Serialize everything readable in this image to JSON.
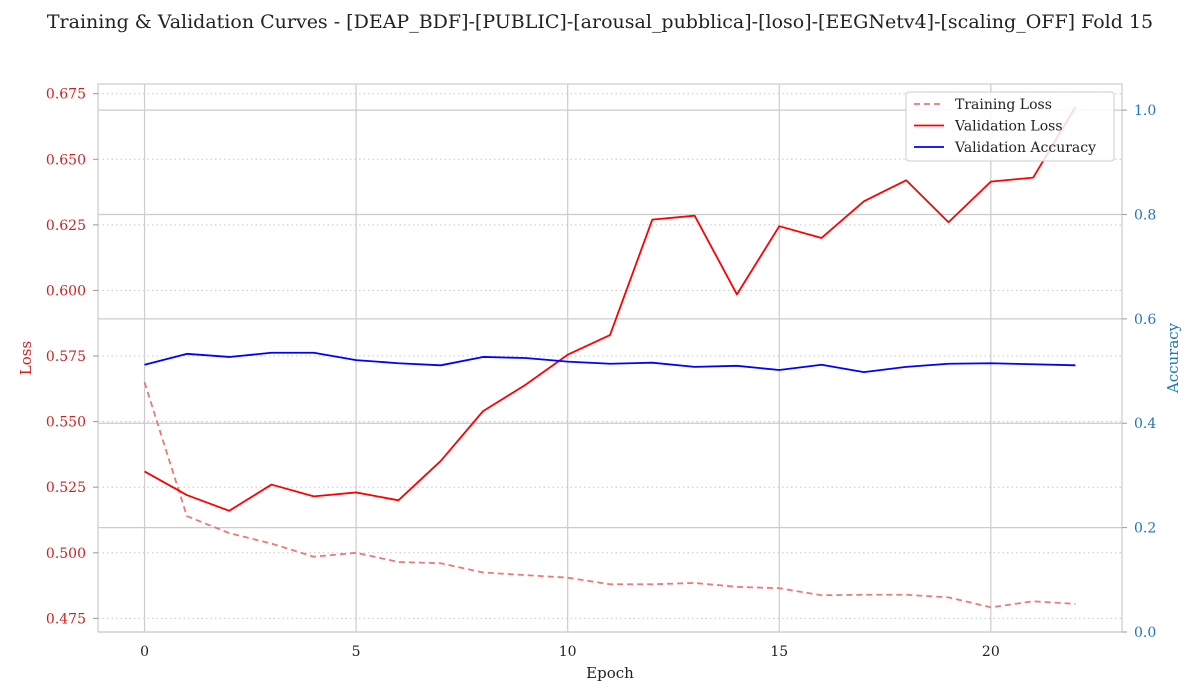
{
  "chart_data": {
    "type": "line",
    "title": "Training & Validation Curves - [DEAP_BDF]-[PUBLIC]-[arousal_pubblica]-[loso]-[EEGNetv4]-[scaling_OFF] Fold 15",
    "xlabel": "Epoch",
    "ylabel_left": "Loss",
    "ylabel_right": "Accuracy",
    "xlim": [
      -1.1,
      23.1
    ],
    "ylim_left": [
      0.4698,
      0.6787
    ],
    "ylim_right": [
      0.0,
      1.05
    ],
    "xticks": [
      0,
      5,
      10,
      15,
      20
    ],
    "yticks_left": [
      0.475,
      0.5,
      0.525,
      0.55,
      0.575,
      0.6,
      0.625,
      0.65,
      0.675
    ],
    "yticks_right": [
      0.0,
      0.2,
      0.4,
      0.6,
      0.8,
      1.0
    ],
    "grid": true,
    "legend_position": "top-right",
    "colors": {
      "training_loss": "#ee7777",
      "validation_loss": "#ff0000",
      "validation_accuracy": "#0000ff",
      "left_axis": "#cc2222",
      "right_axis": "#1f77b4"
    },
    "x": [
      0,
      1,
      2,
      3,
      4,
      5,
      6,
      7,
      8,
      9,
      10,
      11,
      12,
      13,
      14,
      15,
      16,
      17,
      18,
      19,
      20,
      21,
      22
    ],
    "series": [
      {
        "name": "Training Loss",
        "axis": "left",
        "style": "dashed",
        "color": "#ee7777",
        "values": [
          0.565,
          0.514,
          0.5075,
          0.5035,
          0.4985,
          0.5,
          0.4965,
          0.496,
          0.4925,
          0.4915,
          0.4905,
          0.488,
          0.488,
          0.4885,
          0.487,
          0.4865,
          0.4838,
          0.484,
          0.484,
          0.483,
          0.4792,
          0.4815,
          0.4805
        ]
      },
      {
        "name": "Validation Loss",
        "axis": "left",
        "style": "solid",
        "color": "#ff0000",
        "values": [
          0.531,
          0.522,
          0.516,
          0.526,
          0.5215,
          0.523,
          0.52,
          0.535,
          0.554,
          0.564,
          0.5755,
          0.583,
          0.627,
          0.6285,
          0.5985,
          0.6245,
          0.62,
          0.634,
          0.642,
          0.626,
          0.6415,
          0.643,
          0.67
        ]
      },
      {
        "name": "Validation Accuracy",
        "axis": "right",
        "style": "solid",
        "color": "#0000ff",
        "values": [
          0.512,
          0.533,
          0.527,
          0.535,
          0.535,
          0.521,
          0.515,
          0.511,
          0.527,
          0.525,
          0.518,
          0.514,
          0.516,
          0.508,
          0.51,
          0.502,
          0.512,
          0.498,
          0.508,
          0.514,
          0.515,
          0.513,
          0.511
        ]
      }
    ]
  }
}
